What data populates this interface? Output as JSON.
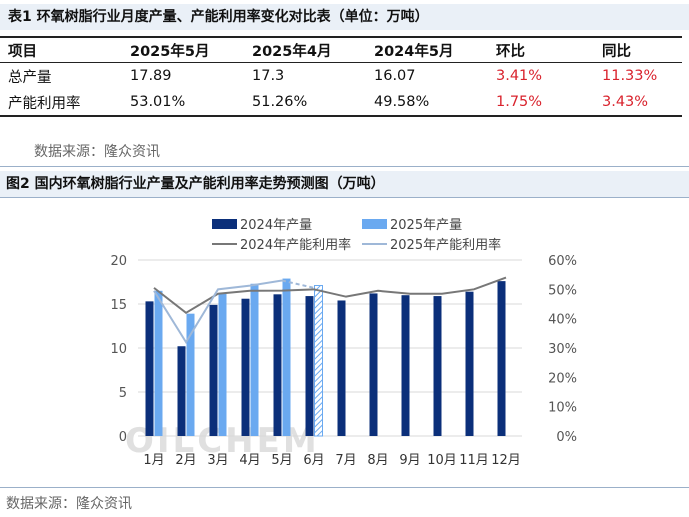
{
  "table1": {
    "title": "表1 环氧树脂行业月度产量、产能利用率变化对比表（单位：万吨）",
    "headers": [
      "项目",
      "2025年5月",
      "2025年4月",
      "2024年5月",
      "环比",
      "同比"
    ],
    "rows": [
      [
        "总产量",
        "17.89",
        "17.3",
        "16.07",
        "3.41%",
        "11.33%"
      ],
      [
        "产能利用率",
        "53.01%",
        "51.26%",
        "49.58%",
        "1.75%",
        "3.43%"
      ]
    ],
    "source": "数据来源：隆众资讯",
    "colors": {
      "positive": "#d9232d"
    }
  },
  "figure2": {
    "title": "图2  国内环氧树脂行业产量及产能利用率走势预测图（万吨）",
    "source": "数据来源：隆众资讯",
    "watermark": "OILCHEM"
  },
  "chart_data": {
    "type": "bar",
    "categories": [
      "1月",
      "2月",
      "3月",
      "4月",
      "5月",
      "6月",
      "7月",
      "8月",
      "9月",
      "10月",
      "11月",
      "12月"
    ],
    "series": [
      {
        "name": "2024年产量",
        "kind": "bar",
        "axis": "left",
        "color": "#0b2f7a",
        "values": [
          15.3,
          10.2,
          14.9,
          15.6,
          16.1,
          15.9,
          15.4,
          16.2,
          16.0,
          15.9,
          16.4,
          17.6
        ]
      },
      {
        "name": "2025年产量",
        "kind": "bar",
        "axis": "left",
        "color": "#6aa9f0",
        "values": [
          16.5,
          13.9,
          16.2,
          17.3,
          17.89,
          17.1,
          null,
          null,
          null,
          null,
          null,
          null
        ],
        "forecast_from_index": 5
      },
      {
        "name": "2024年产能利用率",
        "kind": "line",
        "axis": "right",
        "color": "#777777",
        "values": [
          50.5,
          42,
          48.5,
          49.5,
          49.58,
          50,
          47.5,
          49.5,
          48.5,
          48.5,
          50,
          54
        ]
      },
      {
        "name": "2025年产能利用率",
        "kind": "line",
        "axis": "right",
        "color": "#9fb8d8",
        "values": [
          49.5,
          32,
          50,
          51.26,
          53.01,
          50.5,
          null,
          null,
          null,
          null,
          null,
          null
        ],
        "forecast_from_index": 4
      }
    ],
    "y_left": {
      "min": 0,
      "max": 20,
      "ticks": [
        0,
        5,
        10,
        15,
        20
      ]
    },
    "y_right": {
      "min": 0,
      "max": 60,
      "ticks": [
        "0%",
        "10%",
        "20%",
        "30%",
        "40%",
        "50%",
        "60%"
      ]
    },
    "grid": true,
    "legend": "top"
  }
}
